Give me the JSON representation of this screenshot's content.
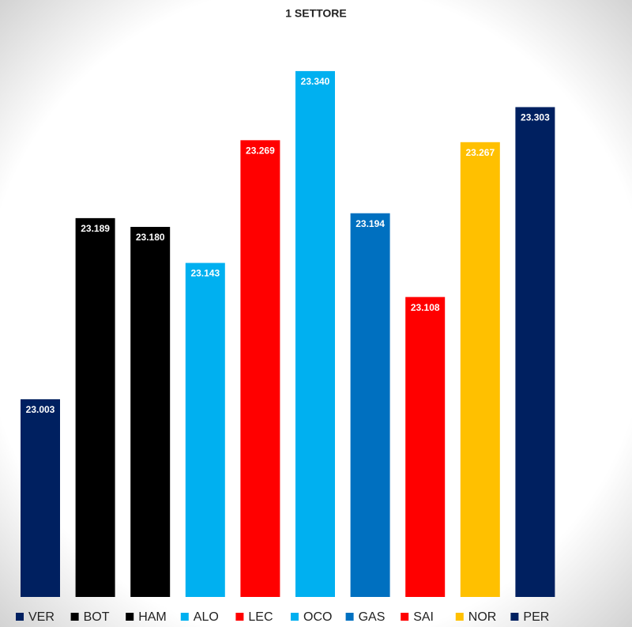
{
  "chart_data": {
    "type": "bar",
    "title": "1 SETTORE",
    "categories": [
      "VER",
      "BOT",
      "HAM",
      "ALO",
      "LEC",
      "OCO",
      "GAS",
      "SAI",
      "NOR",
      "PER"
    ],
    "values": [
      23.003,
      23.189,
      23.18,
      23.143,
      23.269,
      23.34,
      23.194,
      23.108,
      23.267,
      23.303
    ],
    "value_labels": [
      "23.003",
      "23.189",
      "23.180",
      "23.143",
      "23.269",
      "23.340",
      "23.194",
      "23.108",
      "23.267",
      "23.303"
    ],
    "colors": [
      "#002060",
      "#000000",
      "#000000",
      "#00b0f0",
      "#ff0000",
      "#00b0f0",
      "#0070c0",
      "#ff0000",
      "#ffc000",
      "#002060"
    ],
    "ylim": [
      22.8,
      23.4
    ]
  }
}
